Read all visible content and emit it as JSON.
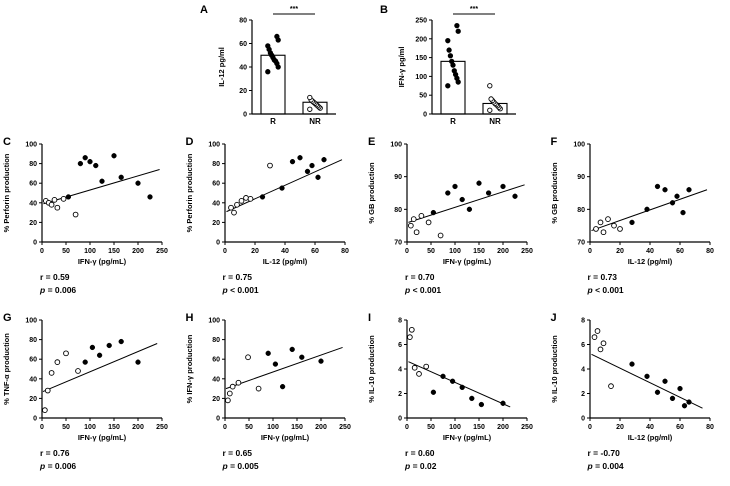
{
  "figure": {
    "background": "#ffffff",
    "ink": "#000000"
  },
  "chart_data": [
    {
      "id": "A",
      "panel_label": "A",
      "type": "bar",
      "ylabel": "IL-12 pg/ml",
      "ylim": [
        0,
        80
      ],
      "yticks": [
        0,
        20,
        40,
        60,
        80
      ],
      "significance": "***",
      "categories": [
        "R",
        "NR"
      ],
      "series": [
        {
          "label": "R",
          "marker": "filled",
          "bar": 50,
          "points": [
            36,
            40,
            43,
            45,
            46,
            48,
            50,
            52,
            55,
            58,
            63,
            66
          ]
        },
        {
          "label": "NR",
          "marker": "open",
          "bar": 10,
          "points": [
            4,
            5,
            6,
            7,
            8,
            9,
            10,
            11,
            12,
            14
          ]
        }
      ]
    },
    {
      "id": "B",
      "panel_label": "B",
      "type": "bar",
      "ylabel": "IFN-γ pg/ml",
      "ylim": [
        0,
        250
      ],
      "yticks": [
        0,
        50,
        100,
        150,
        200,
        250
      ],
      "significance": "***",
      "categories": [
        "R",
        "NR"
      ],
      "series": [
        {
          "label": "R",
          "marker": "filled",
          "bar": 140,
          "points": [
            75,
            85,
            95,
            105,
            115,
            130,
            140,
            155,
            170,
            195,
            220,
            235
          ]
        },
        {
          "label": "NR",
          "marker": "open",
          "bar": 28,
          "points": [
            10,
            14,
            18,
            22,
            25,
            28,
            32,
            36,
            40,
            75
          ]
        }
      ]
    },
    {
      "id": "C",
      "panel_label": "C",
      "type": "scatter",
      "xlabel": "IFN-γ (pg/mL)",
      "ylabel": "% Perforin production",
      "xlim": [
        0,
        250
      ],
      "xticks": [
        0,
        50,
        100,
        150,
        200,
        250
      ],
      "ylim": [
        0,
        100
      ],
      "yticks": [
        0,
        20,
        40,
        60,
        80,
        100
      ],
      "open_points": [
        [
          8,
          42
        ],
        [
          14,
          40
        ],
        [
          20,
          38
        ],
        [
          26,
          43
        ],
        [
          32,
          35
        ],
        [
          45,
          44
        ],
        [
          70,
          28
        ]
      ],
      "filled_points": [
        [
          55,
          46
        ],
        [
          80,
          80
        ],
        [
          90,
          86
        ],
        [
          100,
          82
        ],
        [
          112,
          78
        ],
        [
          125,
          62
        ],
        [
          150,
          88
        ],
        [
          165,
          66
        ],
        [
          200,
          60
        ],
        [
          225,
          46
        ]
      ],
      "line": [
        [
          3,
          39
        ],
        [
          245,
          74
        ]
      ],
      "stats": {
        "r_text": "r = 0.59",
        "p_italic": "p",
        "p_text": " = 0.006"
      }
    },
    {
      "id": "D",
      "panel_label": "D",
      "type": "scatter",
      "xlabel": "IL-12 (pg/ml)",
      "ylabel": "% Perforin production",
      "xlim": [
        0,
        80
      ],
      "xticks": [
        0,
        20,
        40,
        60,
        80
      ],
      "ylim": [
        0,
        100
      ],
      "yticks": [
        0,
        20,
        40,
        60,
        80,
        100
      ],
      "open_points": [
        [
          4,
          35
        ],
        [
          6,
          30
        ],
        [
          8,
          38
        ],
        [
          11,
          42
        ],
        [
          14,
          45
        ],
        [
          17,
          44
        ],
        [
          30,
          78
        ]
      ],
      "filled_points": [
        [
          25,
          46
        ],
        [
          38,
          55
        ],
        [
          45,
          82
        ],
        [
          50,
          86
        ],
        [
          55,
          72
        ],
        [
          58,
          78
        ],
        [
          62,
          66
        ],
        [
          66,
          84
        ]
      ],
      "line": [
        [
          1,
          31
        ],
        [
          78,
          84
        ]
      ],
      "stats": {
        "r_text": "r = 0.75",
        "p_italic": "p",
        "p_text": " < 0.001"
      }
    },
    {
      "id": "E",
      "panel_label": "E",
      "type": "scatter",
      "xlabel": "IFN-γ (pg/mL)",
      "ylabel": "% GB production",
      "xlim": [
        0,
        250
      ],
      "xticks": [
        0,
        50,
        100,
        150,
        200,
        250
      ],
      "ylim": [
        70,
        100
      ],
      "yticks": [
        70,
        80,
        90,
        100
      ],
      "open_points": [
        [
          8,
          75
        ],
        [
          14,
          77
        ],
        [
          20,
          73
        ],
        [
          30,
          78
        ],
        [
          45,
          76
        ],
        [
          70,
          72
        ]
      ],
      "filled_points": [
        [
          55,
          79
        ],
        [
          85,
          85
        ],
        [
          100,
          87
        ],
        [
          115,
          83
        ],
        [
          130,
          80
        ],
        [
          150,
          88
        ],
        [
          170,
          85
        ],
        [
          200,
          87
        ],
        [
          225,
          84
        ]
      ],
      "line": [
        [
          3,
          76
        ],
        [
          245,
          87.5
        ]
      ],
      "stats": {
        "r_text": "r = 0.70",
        "p_italic": "p",
        "p_text": " < 0.001"
      }
    },
    {
      "id": "F",
      "panel_label": "F",
      "type": "scatter",
      "xlabel": "IL-12 (pg/ml)",
      "ylabel": "% GB production",
      "xlim": [
        0,
        80
      ],
      "xticks": [
        0,
        20,
        40,
        60,
        80
      ],
      "ylim": [
        70,
        100
      ],
      "yticks": [
        70,
        80,
        90,
        100
      ],
      "open_points": [
        [
          4,
          74
        ],
        [
          7,
          76
        ],
        [
          9,
          73
        ],
        [
          12,
          77
        ],
        [
          16,
          75
        ],
        [
          20,
          74
        ]
      ],
      "filled_points": [
        [
          28,
          76
        ],
        [
          38,
          80
        ],
        [
          45,
          87
        ],
        [
          50,
          86
        ],
        [
          55,
          82
        ],
        [
          58,
          84
        ],
        [
          62,
          79
        ],
        [
          66,
          86
        ]
      ],
      "line": [
        [
          1,
          73.5
        ],
        [
          78,
          86
        ]
      ],
      "stats": {
        "r_text": "r = 0.73",
        "p_italic": "p",
        "p_text": " < 0.001"
      }
    },
    {
      "id": "G",
      "panel_label": "G",
      "type": "scatter",
      "xlabel": "IFN-γ (pg/mL)",
      "ylabel": "% TNF-α production",
      "xlim": [
        0,
        250
      ],
      "xticks": [
        0,
        50,
        100,
        150,
        200,
        250
      ],
      "ylim": [
        0,
        100
      ],
      "yticks": [
        0,
        20,
        40,
        60,
        80,
        100
      ],
      "open_points": [
        [
          6,
          8
        ],
        [
          12,
          28
        ],
        [
          20,
          46
        ],
        [
          32,
          57
        ],
        [
          50,
          66
        ],
        [
          75,
          48
        ]
      ],
      "filled_points": [
        [
          90,
          57
        ],
        [
          105,
          72
        ],
        [
          120,
          64
        ],
        [
          140,
          74
        ],
        [
          165,
          78
        ],
        [
          200,
          57
        ]
      ],
      "line": [
        [
          2,
          27
        ],
        [
          240,
          76
        ]
      ],
      "stats": {
        "r_text": "r = 0.76",
        "p_italic": "p",
        "p_text": " = 0.006"
      }
    },
    {
      "id": "H",
      "panel_label": "H",
      "type": "scatter",
      "xlabel": "IFN-γ (pg/mL)",
      "ylabel": "% IFN-γ production",
      "xlim": [
        0,
        250
      ],
      "xticks": [
        0,
        50,
        100,
        150,
        200,
        250
      ],
      "ylim": [
        0,
        100
      ],
      "yticks": [
        0,
        20,
        40,
        60,
        80,
        100
      ],
      "open_points": [
        [
          6,
          18
        ],
        [
          10,
          25
        ],
        [
          16,
          32
        ],
        [
          28,
          36
        ],
        [
          48,
          62
        ],
        [
          70,
          30
        ]
      ],
      "filled_points": [
        [
          90,
          66
        ],
        [
          105,
          55
        ],
        [
          120,
          32
        ],
        [
          140,
          70
        ],
        [
          160,
          62
        ],
        [
          200,
          58
        ]
      ],
      "line": [
        [
          2,
          30
        ],
        [
          245,
          72
        ]
      ],
      "stats": {
        "r_text": "r = 0.65",
        "p_italic": "p",
        "p_text": " = 0.005"
      }
    },
    {
      "id": "I",
      "panel_label": "I",
      "type": "scatter",
      "xlabel": "IFN-γ (pg/mL)",
      "ylabel": "% IL-10 production",
      "xlim": [
        0,
        250
      ],
      "xticks": [
        0,
        50,
        100,
        150,
        200,
        250
      ],
      "ylim": [
        0,
        8
      ],
      "yticks": [
        0,
        2,
        4,
        6,
        8
      ],
      "open_points": [
        [
          6,
          6.6
        ],
        [
          10,
          7.2
        ],
        [
          16,
          4.1
        ],
        [
          25,
          3.6
        ],
        [
          40,
          4.2
        ]
      ],
      "filled_points": [
        [
          55,
          2.1
        ],
        [
          75,
          3.4
        ],
        [
          95,
          3.0
        ],
        [
          115,
          2.5
        ],
        [
          135,
          1.6
        ],
        [
          155,
          1.1
        ],
        [
          200,
          1.2
        ]
      ],
      "line": [
        [
          3,
          4.6
        ],
        [
          215,
          0.9
        ]
      ],
      "stats": {
        "r_text": "r = 0.60",
        "p_italic": "p",
        "p_text": " = 0.02"
      }
    },
    {
      "id": "J",
      "panel_label": "J",
      "type": "scatter",
      "xlabel": "IL-12 (pg/ml)",
      "ylabel": "% IL-10 production",
      "xlim": [
        0,
        80
      ],
      "xticks": [
        0,
        20,
        40,
        60,
        80
      ],
      "ylim": [
        0,
        8
      ],
      "yticks": [
        0,
        2,
        4,
        6,
        8
      ],
      "open_points": [
        [
          3,
          6.6
        ],
        [
          5,
          7.1
        ],
        [
          7,
          5.6
        ],
        [
          9,
          6.1
        ],
        [
          14,
          2.6
        ]
      ],
      "filled_points": [
        [
          28,
          4.4
        ],
        [
          38,
          3.4
        ],
        [
          45,
          2.1
        ],
        [
          50,
          3.0
        ],
        [
          55,
          1.6
        ],
        [
          60,
          2.4
        ],
        [
          63,
          1.0
        ],
        [
          66,
          1.3
        ]
      ],
      "line": [
        [
          1,
          5.2
        ],
        [
          75,
          0.8
        ]
      ],
      "stats": {
        "r_text": "r = -0.70",
        "p_italic": "p",
        "p_text": " = 0.004"
      }
    }
  ]
}
